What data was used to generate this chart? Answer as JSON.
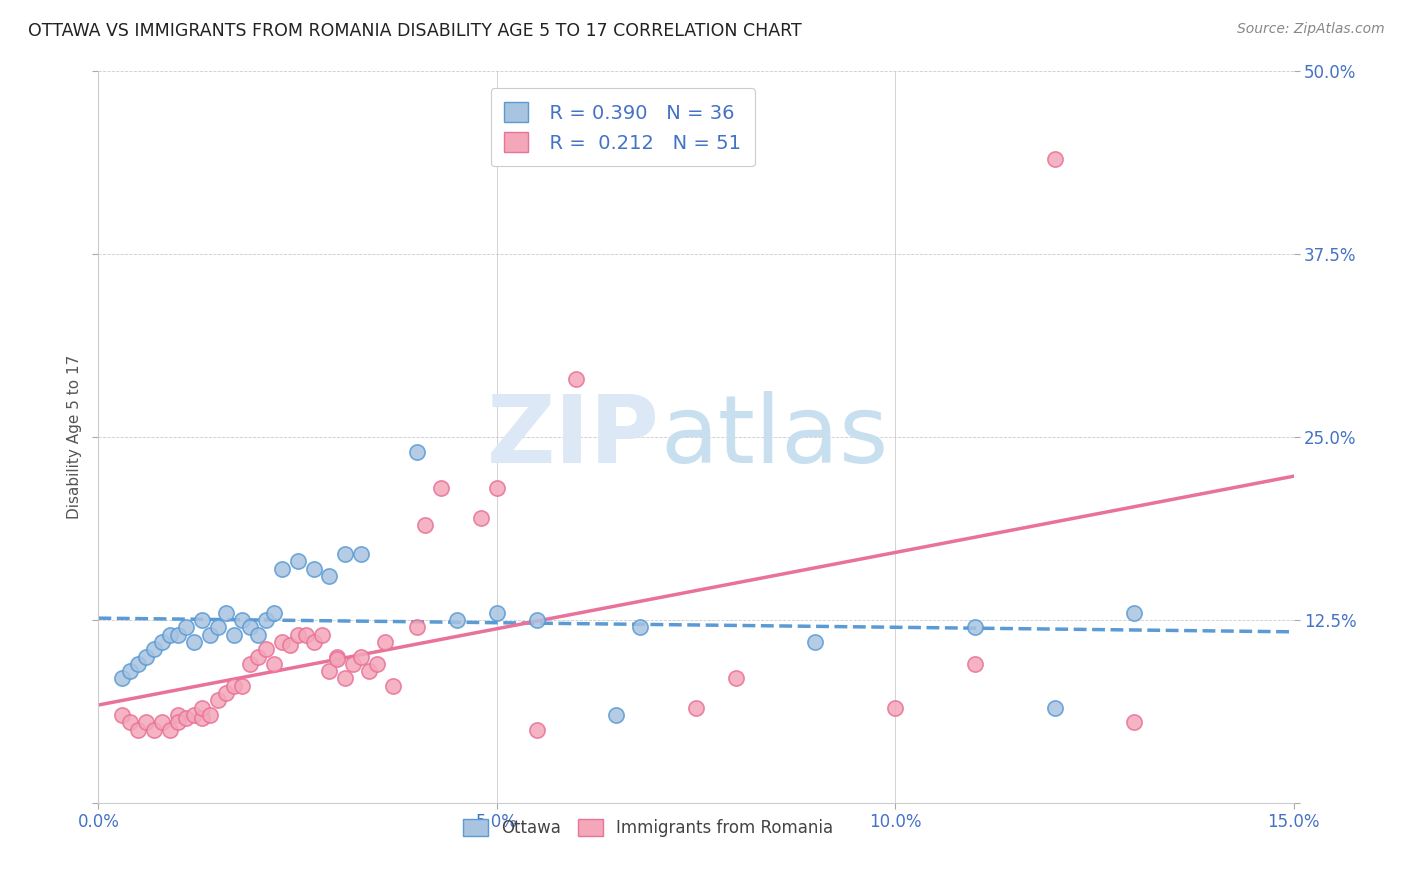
{
  "title": "OTTAWA VS IMMIGRANTS FROM ROMANIA DISABILITY AGE 5 TO 17 CORRELATION CHART",
  "source": "Source: ZipAtlas.com",
  "ylabel": "Disability Age 5 to 17",
  "xlim": [
    0.0,
    0.15
  ],
  "ylim": [
    0.0,
    0.5
  ],
  "xticks": [
    0.0,
    0.05,
    0.1,
    0.15
  ],
  "yticks": [
    0.0,
    0.125,
    0.25,
    0.375,
    0.5
  ],
  "xticklabels": [
    "0.0%",
    "5.0%",
    "10.0%",
    "15.0%"
  ],
  "yticklabels": [
    "",
    "12.5%",
    "25.0%",
    "37.5%",
    "50.0%"
  ],
  "ottawa_color": "#a8c4e0",
  "romania_color": "#f4a7b9",
  "ottawa_edge_color": "#5b9bd5",
  "romania_edge_color": "#e8729a",
  "ottawa_line_color": "#5b9bd5",
  "romania_line_color": "#e8729a",
  "ottawa_x": [
    0.003,
    0.004,
    0.005,
    0.006,
    0.007,
    0.008,
    0.009,
    0.01,
    0.011,
    0.012,
    0.013,
    0.014,
    0.015,
    0.016,
    0.017,
    0.018,
    0.019,
    0.02,
    0.021,
    0.022,
    0.023,
    0.025,
    0.027,
    0.029,
    0.031,
    0.033,
    0.04,
    0.045,
    0.05,
    0.055,
    0.065,
    0.068,
    0.09,
    0.11,
    0.12,
    0.13
  ],
  "ottawa_y": [
    0.085,
    0.09,
    0.095,
    0.1,
    0.105,
    0.11,
    0.115,
    0.115,
    0.12,
    0.11,
    0.125,
    0.115,
    0.12,
    0.13,
    0.115,
    0.125,
    0.12,
    0.115,
    0.125,
    0.13,
    0.16,
    0.165,
    0.16,
    0.155,
    0.17,
    0.17,
    0.24,
    0.125,
    0.13,
    0.125,
    0.06,
    0.12,
    0.11,
    0.12,
    0.065,
    0.13
  ],
  "romania_x": [
    0.003,
    0.004,
    0.005,
    0.006,
    0.007,
    0.008,
    0.009,
    0.01,
    0.01,
    0.011,
    0.012,
    0.013,
    0.013,
    0.014,
    0.015,
    0.016,
    0.017,
    0.018,
    0.019,
    0.02,
    0.021,
    0.022,
    0.023,
    0.024,
    0.025,
    0.026,
    0.027,
    0.028,
    0.029,
    0.03,
    0.03,
    0.031,
    0.032,
    0.033,
    0.034,
    0.035,
    0.036,
    0.037,
    0.04,
    0.041,
    0.043,
    0.048,
    0.05,
    0.055,
    0.06,
    0.075,
    0.08,
    0.1,
    0.11,
    0.12,
    0.13
  ],
  "romania_y": [
    0.06,
    0.055,
    0.05,
    0.055,
    0.05,
    0.055,
    0.05,
    0.06,
    0.055,
    0.058,
    0.06,
    0.058,
    0.065,
    0.06,
    0.07,
    0.075,
    0.08,
    0.08,
    0.095,
    0.1,
    0.105,
    0.095,
    0.11,
    0.108,
    0.115,
    0.115,
    0.11,
    0.115,
    0.09,
    0.1,
    0.098,
    0.085,
    0.095,
    0.1,
    0.09,
    0.095,
    0.11,
    0.08,
    0.12,
    0.19,
    0.215,
    0.195,
    0.215,
    0.05,
    0.29,
    0.065,
    0.085,
    0.065,
    0.095,
    0.44,
    0.055
  ]
}
